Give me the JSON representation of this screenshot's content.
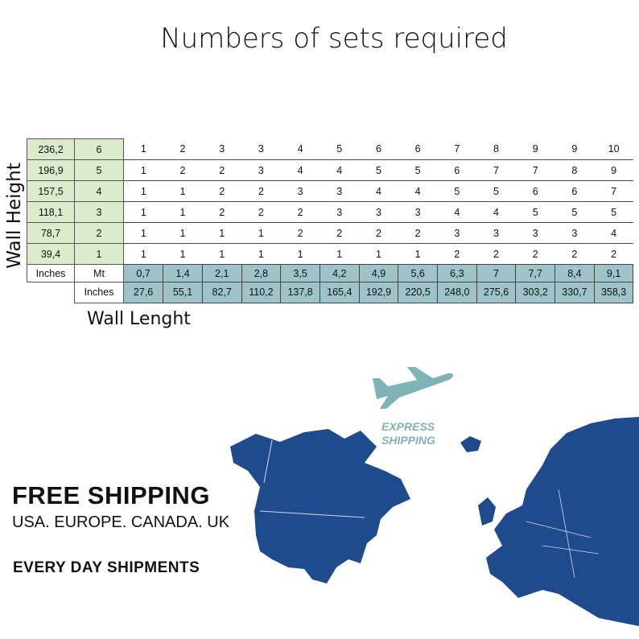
{
  "title": "Numbers of sets required",
  "axis": {
    "height_label": "Wall Height",
    "length_label": "Wall Lenght"
  },
  "table": {
    "rows": [
      {
        "inches": "236,2",
        "mt": "6",
        "values": [
          "1",
          "2",
          "3",
          "3",
          "4",
          "5",
          "6",
          "6",
          "7",
          "8",
          "9",
          "9",
          "10"
        ]
      },
      {
        "inches": "196,9",
        "mt": "5",
        "values": [
          "1",
          "2",
          "2",
          "3",
          "4",
          "4",
          "5",
          "5",
          "6",
          "7",
          "7",
          "8",
          "9"
        ]
      },
      {
        "inches": "157,5",
        "mt": "4",
        "values": [
          "1",
          "1",
          "2",
          "2",
          "3",
          "3",
          "4",
          "4",
          "5",
          "5",
          "6",
          "6",
          "7"
        ]
      },
      {
        "inches": "118,1",
        "mt": "3",
        "values": [
          "1",
          "1",
          "2",
          "2",
          "2",
          "3",
          "3",
          "3",
          "4",
          "4",
          "5",
          "5",
          "5"
        ]
      },
      {
        "inches": "78,7",
        "mt": "2",
        "values": [
          "1",
          "1",
          "1",
          "1",
          "2",
          "2",
          "2",
          "2",
          "3",
          "3",
          "3",
          "3",
          "4"
        ]
      },
      {
        "inches": "39,4",
        "mt": "1",
        "values": [
          "1",
          "1",
          "1",
          "1",
          "1",
          "1",
          "1",
          "1",
          "2",
          "2",
          "2",
          "2",
          "2"
        ]
      }
    ],
    "header_inches": "Inches",
    "header_mt": "Mt",
    "length_mt": [
      "0,7",
      "1,4",
      "2,1",
      "2,8",
      "3,5",
      "4,2",
      "4,9",
      "5,6",
      "6,3",
      "7",
      "7,7",
      "8,4",
      "9,1"
    ],
    "length_inches_label": "Inches",
    "length_inches": [
      "27,6",
      "55,1",
      "82,7",
      "110,2",
      "137,8",
      "165,4",
      "192,9",
      "220,5",
      "248,0",
      "275,6",
      "303,2",
      "330,7",
      "358,3"
    ]
  },
  "shipping": {
    "express": [
      "EXPRESS",
      "SHIPPING"
    ],
    "headline": "FREE SHIPPING",
    "countries": "USA. EUROPE. CANADA. UK",
    "everyday": "EVERY DAY SHIPMENTS"
  },
  "colors": {
    "map": "#1f4a8c",
    "plane": "#7fb3b5",
    "green": "#dbeccd",
    "teal": "#9ec3c9"
  }
}
